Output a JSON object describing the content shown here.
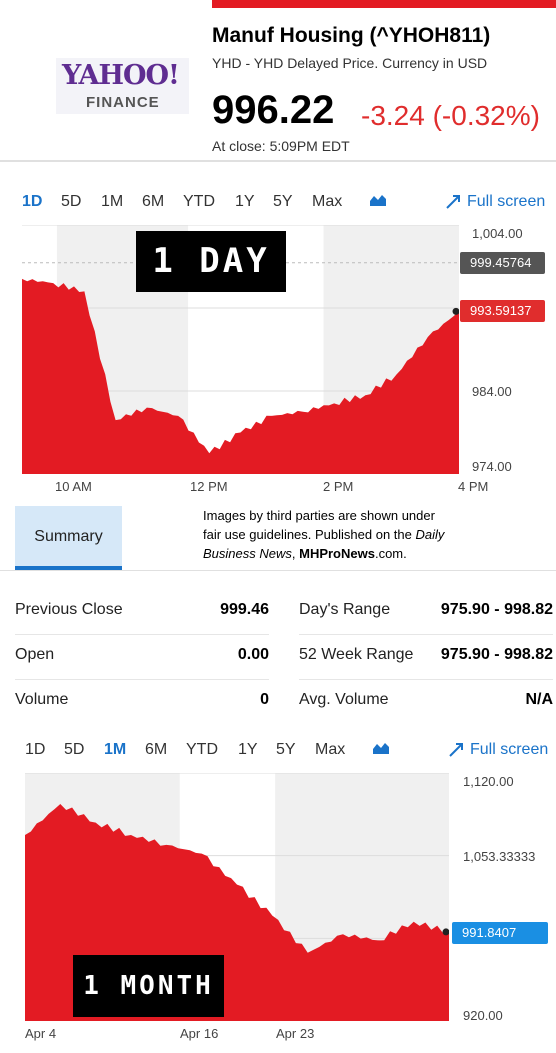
{
  "brand": {
    "logo_text": "YAHOO!",
    "logo_sub": "FINANCE",
    "accent": "#e31b23",
    "logo_color": "#5f2d91"
  },
  "quote": {
    "title": "Manuf Housing (^YHOH811)",
    "subtitle": "YHD - YHD Delayed Price. Currency in USD",
    "price": "996.22",
    "change": "-3.24 (-0.32%)",
    "close_time": "At close: 5:09PM EDT",
    "down_color": "#e02d2d"
  },
  "range_tabs_1": {
    "items": [
      "1D",
      "5D",
      "1M",
      "6M",
      "YTD",
      "1Y",
      "5Y",
      "Max"
    ],
    "active": "1D",
    "chart_type_icon": "mountain-chart-icon",
    "fullscreen_icon": "expand-arrow-icon",
    "fullscreen_label": "Full screen"
  },
  "day_chart": {
    "overlay_label": "1 DAY",
    "y_ticks": [
      "1,004.00",
      "984.00",
      "974.00"
    ],
    "x_ticks": [
      "10 AM",
      "12 PM",
      "2 PM",
      "4 PM"
    ],
    "prev_close_flag": "999.45764",
    "last_flag": "993.59137"
  },
  "summary_tab": {
    "label": "Summary"
  },
  "notice": {
    "line1": "Images by third parties are shown under",
    "line2": "fair use guidelines.  Published on the ",
    "line2_italic": "Daily",
    "line3_italic": "Business News",
    "line3_mid": ", ",
    "line3_bold": "MHProNews",
    "line3_end": ".com."
  },
  "stats": {
    "left": [
      {
        "label": "Previous Close",
        "value": "999.46"
      },
      {
        "label": "Open",
        "value": "0.00"
      },
      {
        "label": "Volume",
        "value": "0"
      }
    ],
    "right": [
      {
        "label": "Day's Range",
        "value": "975.90 - 998.82"
      },
      {
        "label": "52 Week Range",
        "value": "975.90 - 998.82"
      },
      {
        "label": "Avg. Volume",
        "value": "N/A"
      }
    ]
  },
  "range_tabs_2": {
    "items": [
      "1D",
      "5D",
      "1M",
      "6M",
      "YTD",
      "1Y",
      "5Y",
      "Max"
    ],
    "active": "1M",
    "chart_type_icon": "mountain-chart-icon",
    "fullscreen_icon": "expand-arrow-icon",
    "fullscreen_label": "Full screen"
  },
  "month_chart": {
    "overlay_label": "1 MONTH",
    "y_ticks": [
      "1,120.00",
      "1,053.33333",
      "920.00"
    ],
    "x_ticks": [
      "Apr 4",
      "Apr 16",
      "Apr 23"
    ],
    "last_flag": "991.8407",
    "flag_color": "#1a8fe3"
  },
  "chart_data": [
    {
      "type": "area",
      "title": "",
      "x": [
        "9:30",
        "10:00",
        "10:30",
        "10:45",
        "11:00",
        "11:30",
        "12:00",
        "12:30",
        "1:00",
        "1:30",
        "2:00",
        "2:30",
        "3:00",
        "3:30",
        "4:00"
      ],
      "values": [
        997.5,
        997.0,
        996.0,
        980.5,
        982.0,
        981.0,
        976.5,
        979.0,
        981.0,
        981.5,
        982.5,
        983.5,
        986.0,
        990.5,
        993.59
      ],
      "ylim": [
        974.0,
        1004.0
      ],
      "prev_close": 999.45764,
      "last": 993.59137,
      "color": "#e31b23"
    },
    {
      "type": "area",
      "title": "",
      "x": [
        "Apr 4",
        "Apr 6",
        "Apr 9",
        "Apr 11",
        "Apr 13",
        "Apr 16",
        "Apr 18",
        "Apr 20",
        "Apr 23",
        "Apr 25",
        "Apr 27",
        "Apr 30",
        "May 2"
      ],
      "values": [
        1070,
        1095,
        1080,
        1070,
        1062,
        1055,
        1030,
        1005,
        975,
        990,
        985,
        1000,
        991.84
      ],
      "ylim": [
        920.0,
        1120.0
      ],
      "last": 991.8407,
      "color": "#e31b23"
    }
  ]
}
